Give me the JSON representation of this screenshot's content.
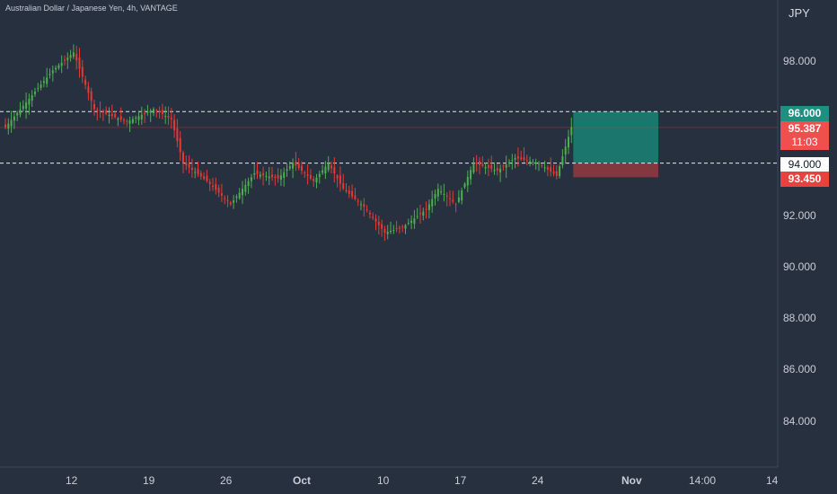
{
  "chart_title": "Australian Dollar / Japanese Yen, 4h, VANTAGE",
  "currency": "JPY",
  "y_axis": {
    "ticks": [
      "98.000",
      "96.000",
      "94.000",
      "92.000",
      "90.000",
      "88.000",
      "86.000",
      "84.000"
    ]
  },
  "x_axis": {
    "ticks": [
      "12",
      "19",
      "26",
      "Oct",
      "10",
      "17",
      "24",
      "Nov",
      "14:00",
      "14"
    ]
  },
  "price_tags": {
    "target": "96.000",
    "current": "95.387",
    "countdown": "11:03",
    "entry": "94.000",
    "stop": "93.450"
  },
  "colors": {
    "background": "#27303f",
    "bull": "#4caf50",
    "bear": "#e53935",
    "profit_zone": "#1b7e73",
    "loss_zone": "#8e3a3f",
    "target_tag": "#1f8f82",
    "current_tag": "#ef4f4d",
    "stop_tag": "#e8423e"
  },
  "chart_data": {
    "type": "candlestick",
    "ylim": [
      82.0,
      100.0
    ],
    "x_ticks": [
      "12",
      "19",
      "26",
      "Oct",
      "10",
      "17",
      "24",
      "Nov",
      "14:00",
      "14"
    ],
    "horizontal_levels": [
      96.0,
      94.0
    ],
    "current_price": 95.387,
    "position": {
      "target": 96.0,
      "entry": 94.0,
      "stop": 93.45
    },
    "key_points": [
      {
        "t": 0,
        "close": 95.4
      },
      {
        "t": 16,
        "close": 97.6
      },
      {
        "t": 23,
        "close": 98.3
      },
      {
        "t": 30,
        "close": 96.1
      },
      {
        "t": 41,
        "close": 95.6
      },
      {
        "t": 50,
        "close": 96.1
      },
      {
        "t": 56,
        "close": 95.7
      },
      {
        "t": 60,
        "close": 94.0
      },
      {
        "t": 68,
        "close": 93.3
      },
      {
        "t": 76,
        "close": 92.4
      },
      {
        "t": 84,
        "close": 93.6
      },
      {
        "t": 92,
        "close": 93.4
      },
      {
        "t": 97,
        "close": 94.0
      },
      {
        "t": 104,
        "close": 93.3
      },
      {
        "t": 109,
        "close": 94.0
      },
      {
        "t": 114,
        "close": 93.0
      },
      {
        "t": 121,
        "close": 92.3
      },
      {
        "t": 128,
        "close": 91.3
      },
      {
        "t": 134,
        "close": 91.5
      },
      {
        "t": 142,
        "close": 92.2
      },
      {
        "t": 146,
        "close": 93.0
      },
      {
        "t": 152,
        "close": 92.4
      },
      {
        "t": 158,
        "close": 94.0
      },
      {
        "t": 166,
        "close": 93.7
      },
      {
        "t": 172,
        "close": 94.2
      },
      {
        "t": 180,
        "close": 94.0
      },
      {
        "t": 186,
        "close": 93.5
      },
      {
        "t": 191,
        "close": 95.4
      }
    ]
  }
}
